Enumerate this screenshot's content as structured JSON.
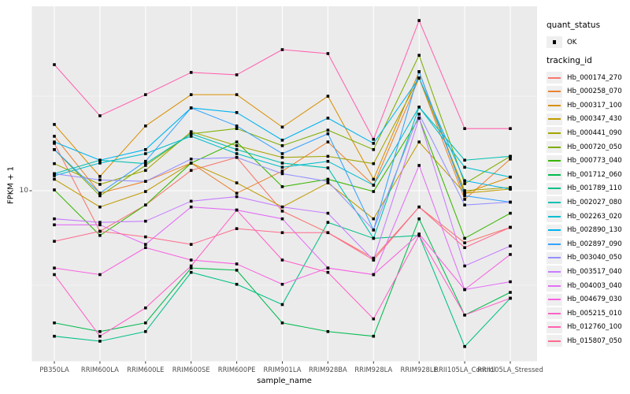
{
  "figure": {
    "y_axis": {
      "title": "FPKM + 1",
      "tick_label": "10",
      "scale": "log10"
    },
    "x_axis": {
      "title": "sample_name"
    },
    "legend": {
      "quant_status": {
        "title": "quant_status",
        "items": [
          {
            "label": "OK",
            "symbol": "black-point"
          }
        ]
      },
      "tracking_id": {
        "title": "tracking_id"
      }
    },
    "colors": {
      "panel_background": "#EBEBEB",
      "grid": "#FFFFFF",
      "axis_text": "#4D4D4D",
      "tick_mark": "#333333",
      "legend_key_background": "#EFEFEF",
      "point": "#000000"
    }
  },
  "chart_data": {
    "type": "line",
    "title": "",
    "xlabel": "sample_name",
    "ylabel": "FPKM + 1",
    "y_scale": "log10",
    "y_major_break": 10,
    "y_minor_breaks": [
      31.62,
      3.162
    ],
    "ylim": [
      1.26,
      94
    ],
    "grid": true,
    "legend_position": "right",
    "point_status_label": "OK",
    "categories": [
      "PB350LA",
      "RRIM600LA",
      "RRIM600LE",
      "RRIM600SE",
      "RRIM600PE",
      "RRIM901LA",
      "RRIM928BA",
      "RRIM928LA",
      "RRIM928LE",
      "RRII105LA_Control",
      "RRII105LA_Stressed"
    ],
    "series": [
      {
        "name": "Hb_000174_270",
        "color": "#F8766D",
        "values": [
          17.8,
          6.1,
          8.4,
          12.8,
          15.0,
          7.8,
          6.0,
          4.4,
          8.2,
          5.3,
          6.4
        ]
      },
      {
        "name": "Hb_000258_070",
        "color": "#EA8331",
        "values": [
          19.4,
          9.7,
          11.2,
          14.0,
          9.7,
          12.7,
          18.1,
          10.7,
          39.4,
          9.0,
          14.7
        ]
      },
      {
        "name": "Hb_000317_100",
        "color": "#D89000",
        "values": [
          22.4,
          11.9,
          22.0,
          32.2,
          32.2,
          21.7,
          31.6,
          11.5,
          42.6,
          9.7,
          11.8
        ]
      },
      {
        "name": "Hb_000347_430",
        "color": "#C09B00",
        "values": [
          11.5,
          8.2,
          9.9,
          14.0,
          11.0,
          8.2,
          11.0,
          7.1,
          18.1,
          9.7,
          10.2
        ]
      },
      {
        "name": "Hb_000441_090",
        "color": "#A3A500",
        "values": [
          13.9,
          10.8,
          12.8,
          20.5,
          17.3,
          15.0,
          15.2,
          13.9,
          39.4,
          10.0,
          10.4
        ]
      },
      {
        "name": "Hb_000720_050",
        "color": "#7CAE00",
        "values": [
          16.5,
          9.4,
          13.6,
          20.0,
          21.3,
          17.3,
          20.9,
          16.5,
          52.0,
          10.9,
          15.2
        ]
      },
      {
        "name": "Hb_000773_040",
        "color": "#39B600",
        "values": [
          10.1,
          5.8,
          8.4,
          14.0,
          18.1,
          10.5,
          11.5,
          9.9,
          24.2,
          5.6,
          7.6
        ]
      },
      {
        "name": "Hb_001712_060",
        "color": "#00BB4E",
        "values": [
          2.0,
          1.8,
          2.0,
          3.9,
          3.8,
          2.0,
          1.8,
          1.7,
          7.1,
          2.2,
          2.9
        ]
      },
      {
        "name": "Hb_001789_110",
        "color": "#00C087",
        "values": [
          1.7,
          1.6,
          1.8,
          3.7,
          3.2,
          2.5,
          6.8,
          5.6,
          5.8,
          1.5,
          2.7
        ]
      },
      {
        "name": "Hb_002027_080",
        "color": "#00C0B2",
        "values": [
          12.3,
          14.5,
          13.9,
          20.0,
          16.5,
          14.0,
          13.2,
          5.6,
          27.7,
          14.5,
          15.2
        ]
      },
      {
        "name": "Hb_002263_020",
        "color": "#00BDD0",
        "values": [
          12.0,
          14.0,
          15.7,
          19.4,
          15.7,
          13.3,
          14.3,
          10.7,
          27.7,
          13.3,
          11.8
        ]
      },
      {
        "name": "Hb_002890_130",
        "color": "#00B4EF",
        "values": [
          18.1,
          14.5,
          16.5,
          27.4,
          25.9,
          18.5,
          24.2,
          17.8,
          39.4,
          11.3,
          10.2
        ]
      },
      {
        "name": "Hb_002897_090",
        "color": "#35A2FF",
        "values": [
          16.5,
          9.7,
          14.3,
          27.4,
          22.0,
          15.7,
          20.0,
          6.2,
          42.6,
          9.4,
          8.7
        ]
      },
      {
        "name": "Hb_003040_050",
        "color": "#9590FF",
        "values": [
          12.3,
          11.4,
          11.2,
          14.7,
          15.0,
          12.3,
          11.2,
          6.2,
          25.4,
          8.4,
          8.7
        ]
      },
      {
        "name": "Hb_003517_040",
        "color": "#C77CFF",
        "values": [
          7.1,
          6.8,
          6.9,
          8.8,
          9.3,
          8.2,
          7.6,
          4.3,
          24.2,
          4.0,
          5.1
        ]
      },
      {
        "name": "Hb_004003_040",
        "color": "#E36EF6",
        "values": [
          6.6,
          6.6,
          5.2,
          8.2,
          7.9,
          7.1,
          3.9,
          3.6,
          13.6,
          3.0,
          3.3
        ]
      },
      {
        "name": "Hb_004679_030",
        "color": "#F763E0",
        "values": [
          3.9,
          3.6,
          5.0,
          4.3,
          4.1,
          3.2,
          3.9,
          3.6,
          5.9,
          3.0,
          4.6
        ]
      },
      {
        "name": "Hb_005215_010",
        "color": "#FF61C7",
        "values": [
          3.6,
          1.7,
          2.4,
          4.0,
          7.9,
          4.3,
          3.7,
          2.1,
          5.8,
          2.2,
          2.7
        ]
      },
      {
        "name": "Hb_012760_100",
        "color": "#FF62B0",
        "values": [
          46.4,
          24.9,
          32.2,
          42.2,
          41.0,
          55.7,
          53.1,
          18.7,
          79.4,
          21.3,
          21.3
        ]
      },
      {
        "name": "Hb_015807_050",
        "color": "#FF6B8E",
        "values": [
          5.4,
          6.1,
          5.7,
          5.2,
          6.3,
          6.0,
          6.0,
          4.3,
          8.2,
          5.0,
          6.4
        ]
      }
    ]
  }
}
